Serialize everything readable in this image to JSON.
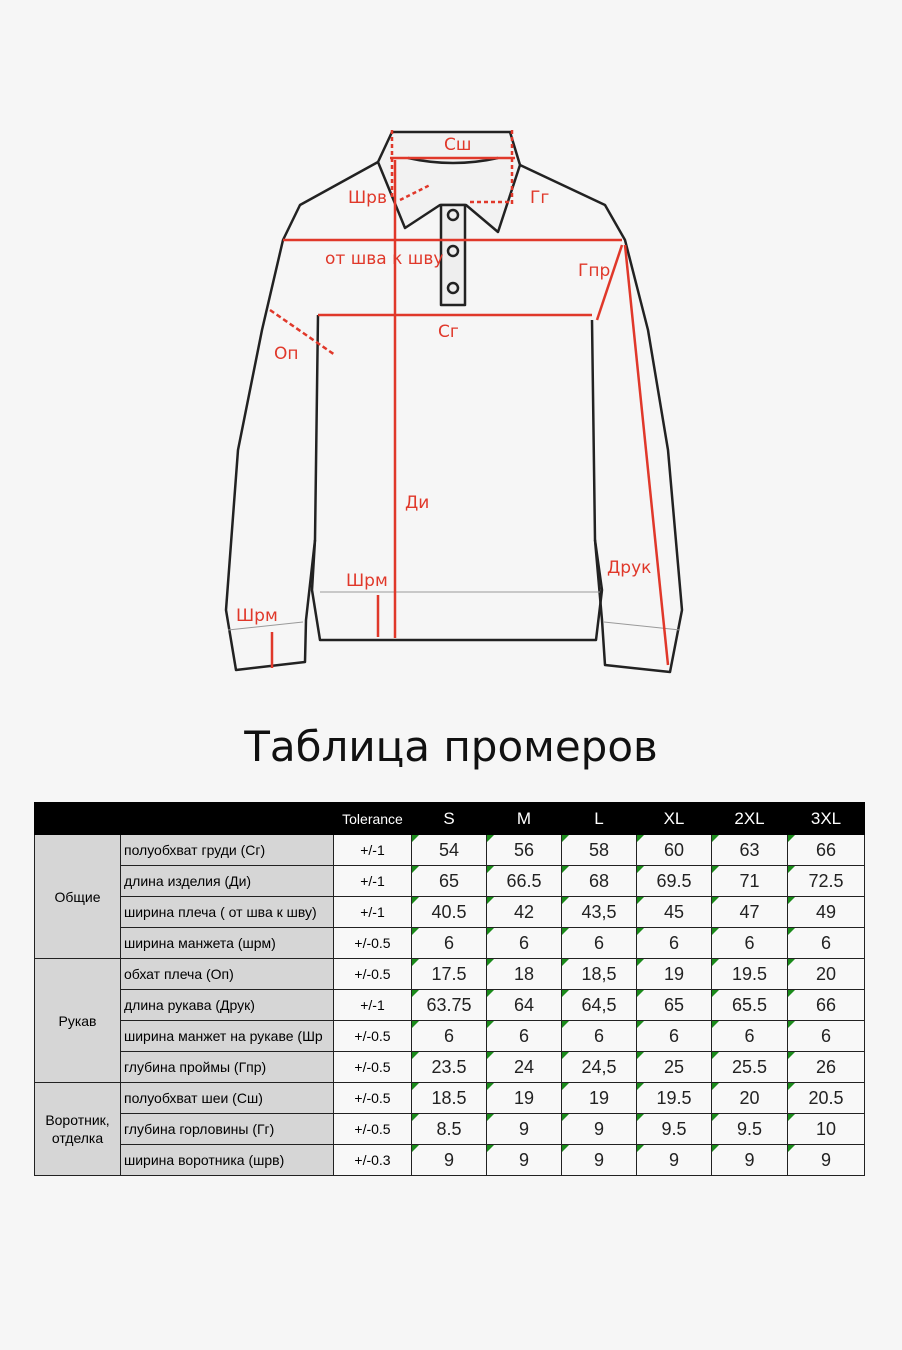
{
  "diagram": {
    "labels": {
      "sh": "Сш",
      "shrv": "Шрв",
      "gg": "Гг",
      "seam": "от шва к шву",
      "gpr": "Гпр",
      "sg": "Сг",
      "op": "Оп",
      "di": "Ди",
      "shrm_body": "Шрм",
      "shrm_sleeve": "Шрм",
      "druk": "Друк"
    },
    "accent_color": "#e0382a"
  },
  "title": "Таблица промеров",
  "table": {
    "header": {
      "blank1": "",
      "blank2": "",
      "tolerance": "Tolerance",
      "sizes": [
        "S",
        "M",
        "L",
        "XL",
        "2XL",
        "3XL"
      ]
    },
    "groups": [
      {
        "name": "Общие",
        "rows": [
          {
            "param": "полуобхват груди (Сг)",
            "tol": "+/-1",
            "values": [
              "54",
              "56",
              "58",
              "60",
              "63",
              "66"
            ]
          },
          {
            "param": "длина изделия (Ди)",
            "tol": "+/-1",
            "values": [
              "65",
              "66.5",
              "68",
              "69.5",
              "71",
              "72.5"
            ]
          },
          {
            "param": "ширина плеча ( от шва к шву)",
            "tol": "+/-1",
            "values": [
              "40.5",
              "42",
              "43,5",
              "45",
              "47",
              "49"
            ]
          },
          {
            "param": "ширина манжета (шрм)",
            "tol": "+/-0.5",
            "values": [
              "6",
              "6",
              "6",
              "6",
              "6",
              "6"
            ]
          }
        ]
      },
      {
        "name": "Рукав",
        "rows": [
          {
            "param": "обхат плеча (Оп)",
            "tol": "+/-0.5",
            "values": [
              "17.5",
              "18",
              "18,5",
              "19",
              "19.5",
              "20"
            ]
          },
          {
            "param": "длина рукава (Друк)",
            "tol": "+/-1",
            "values": [
              "63.75",
              "64",
              "64,5",
              "65",
              "65.5",
              "66"
            ]
          },
          {
            "param": "ширина манжет на рукаве (Шр",
            "tol": "+/-0.5",
            "values": [
              "6",
              "6",
              "6",
              "6",
              "6",
              "6"
            ]
          },
          {
            "param": "глубина проймы (Гпр)",
            "tol": "+/-0.5",
            "values": [
              "23.5",
              "24",
              "24,5",
              "25",
              "25.5",
              "26"
            ]
          }
        ]
      },
      {
        "name": "Воротник, отделка",
        "rows": [
          {
            "param": "полуобхват шеи (Сш)",
            "tol": "+/-0.5",
            "values": [
              "18.5",
              "19",
              "19",
              "19.5",
              "20",
              "20.5"
            ]
          },
          {
            "param": "глубина горловины (Гг)",
            "tol": "+/-0.5",
            "values": [
              "8.5",
              "9",
              "9",
              "9.5",
              "9.5",
              "10"
            ]
          },
          {
            "param": "ширина воротника (шрв)",
            "tol": "+/-0.3",
            "values": [
              "9",
              "9",
              "9",
              "9",
              "9",
              "9"
            ]
          }
        ]
      }
    ]
  }
}
